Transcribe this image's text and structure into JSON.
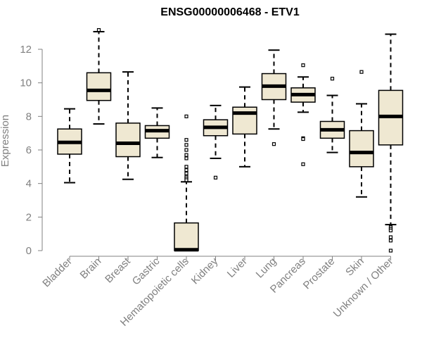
{
  "chart_data": {
    "type": "boxplot",
    "title": "ENSG00000006468 - ETV1",
    "xlabel": "",
    "ylabel": "Expression",
    "ylim": [
      0,
      13
    ],
    "yticks": [
      0,
      2,
      4,
      6,
      8,
      10,
      12
    ],
    "ytick_labels": [
      "0",
      "2",
      "4",
      "6",
      "8",
      "10",
      "12"
    ],
    "categories": [
      "Bladder",
      "Brain",
      "Breast",
      "Gastric",
      "Hematopoietic cells",
      "Kidney",
      "Liver",
      "Lung",
      "Pancreas",
      "Prostate",
      "Skin",
      "Unknown / Other"
    ],
    "boxes": [
      {
        "name": "Bladder",
        "whisker_low": 4.05,
        "q1": 5.75,
        "median": 6.45,
        "q3": 7.25,
        "whisker_high": 8.45,
        "outliers": []
      },
      {
        "name": "Brain",
        "whisker_low": 7.55,
        "q1": 8.95,
        "median": 9.55,
        "q3": 10.6,
        "whisker_high": 13.05,
        "outliers": [
          13.15
        ]
      },
      {
        "name": "Breast",
        "whisker_low": 4.25,
        "q1": 5.6,
        "median": 6.4,
        "q3": 7.6,
        "whisker_high": 10.65,
        "outliers": []
      },
      {
        "name": "Gastric",
        "whisker_low": 5.55,
        "q1": 6.7,
        "median": 7.15,
        "q3": 7.45,
        "whisker_high": 8.5,
        "outliers": []
      },
      {
        "name": "Hematopoietic cells",
        "whisker_low": 0.0,
        "q1": 0.0,
        "median": 0.05,
        "q3": 1.65,
        "whisker_high": 4.1,
        "outliers": [
          8.0,
          6.6,
          6.3,
          6.0,
          5.7,
          5.5,
          5.0,
          4.8,
          4.6,
          4.4,
          4.3,
          4.2
        ]
      },
      {
        "name": "Kidney",
        "whisker_low": 5.5,
        "q1": 6.85,
        "median": 7.35,
        "q3": 7.8,
        "whisker_high": 8.65,
        "outliers": [
          4.35
        ]
      },
      {
        "name": "Liver",
        "whisker_low": 5.0,
        "q1": 6.95,
        "median": 8.2,
        "q3": 8.55,
        "whisker_high": 9.75,
        "outliers": []
      },
      {
        "name": "Lung",
        "whisker_low": 7.25,
        "q1": 9.0,
        "median": 9.8,
        "q3": 10.55,
        "whisker_high": 11.95,
        "outliers": [
          6.35
        ]
      },
      {
        "name": "Pancreas",
        "whisker_low": 8.25,
        "q1": 8.85,
        "median": 9.3,
        "q3": 9.7,
        "whisker_high": 10.35,
        "outliers": [
          11.05,
          6.7,
          6.65,
          5.15
        ]
      },
      {
        "name": "Prostate",
        "whisker_low": 5.85,
        "q1": 6.7,
        "median": 7.2,
        "q3": 7.7,
        "whisker_high": 9.25,
        "outliers": [
          10.25
        ]
      },
      {
        "name": "Skin",
        "whisker_low": 3.2,
        "q1": 5.0,
        "median": 5.85,
        "q3": 7.15,
        "whisker_high": 8.75,
        "outliers": [
          10.65
        ]
      },
      {
        "name": "Unknown / Other",
        "whisker_low": 1.55,
        "q1": 6.3,
        "median": 8.0,
        "q3": 9.55,
        "whisker_high": 12.9,
        "outliers": [
          1.4,
          1.3,
          1.2,
          0.8,
          0.6,
          0.0
        ]
      }
    ],
    "colors": {
      "box_fill": "#efe8d2",
      "box_stroke": "#000000",
      "median": "#000000",
      "axis": "#808080",
      "tick_text": "#808080",
      "title": "#000000"
    },
    "grid": false,
    "legend": "none"
  }
}
